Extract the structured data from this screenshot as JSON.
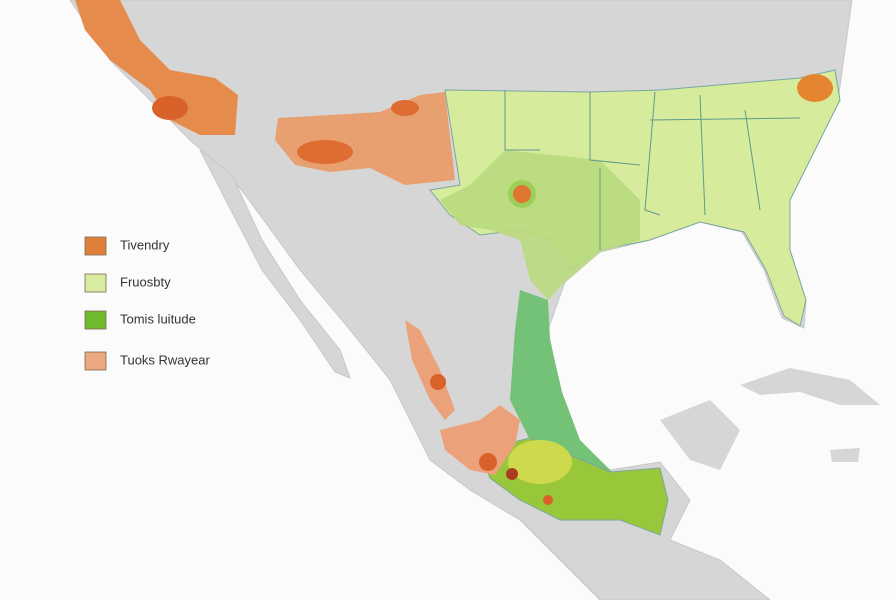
{
  "legend": {
    "items": [
      {
        "label": "Tivendry",
        "color": "#e07f3a"
      },
      {
        "label": "Fruosbty",
        "color": "#d8eba0"
      },
      {
        "label": "Tomis luitude",
        "color": "#6fba2c"
      },
      {
        "label": "Tuoks Rwayear",
        "color": "#eba77d"
      }
    ]
  }
}
